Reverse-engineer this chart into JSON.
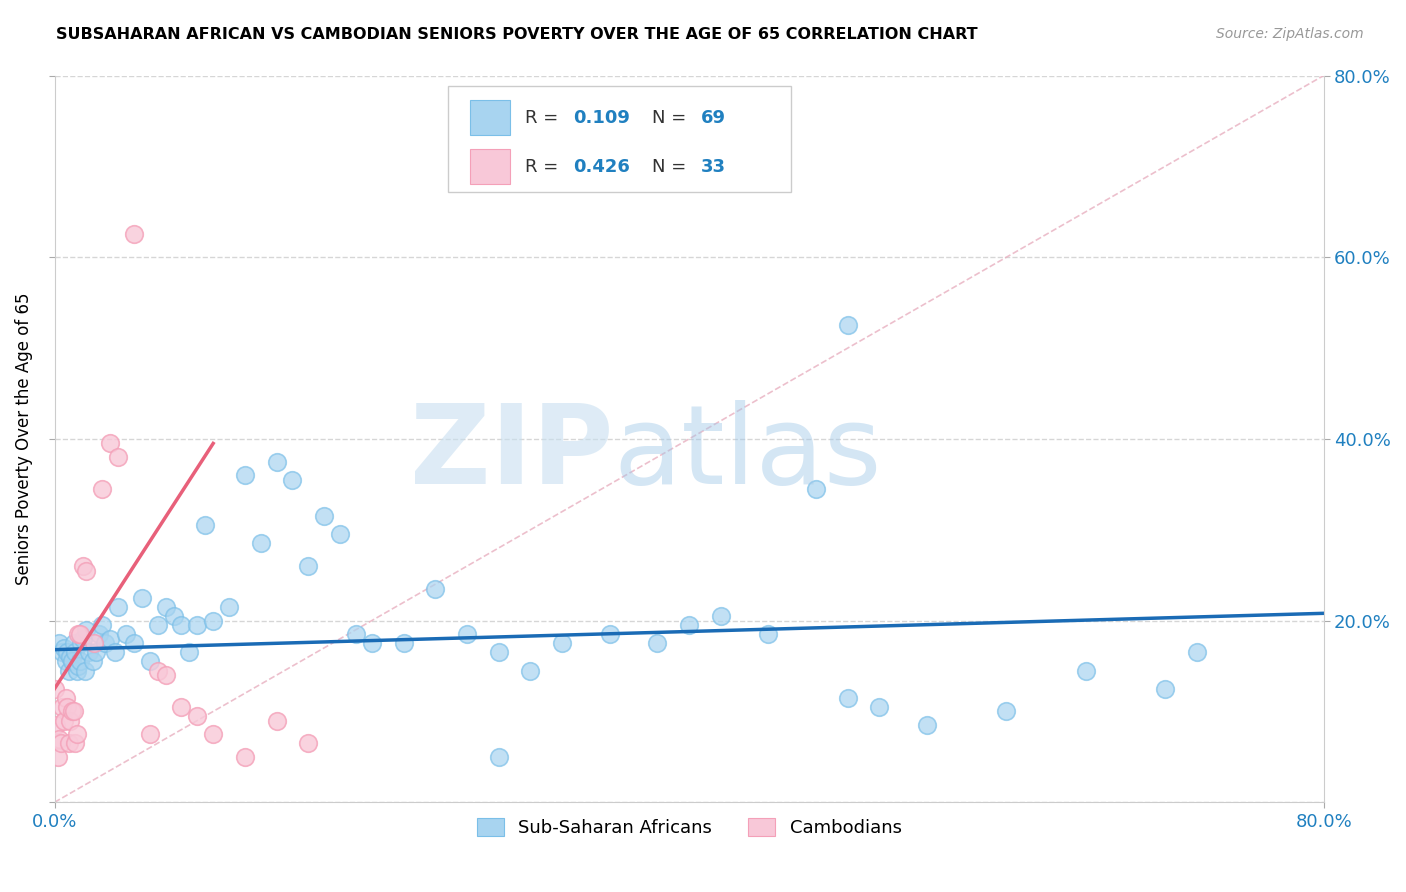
{
  "title": "SUBSAHARAN AFRICAN VS CAMBODIAN SENIORS POVERTY OVER THE AGE OF 65 CORRELATION CHART",
  "source": "Source: ZipAtlas.com",
  "ylabel": "Seniors Poverty Over the Age of 65",
  "xlim": [
    0,
    0.8
  ],
  "ylim": [
    0,
    0.8
  ],
  "xtick_vals": [
    0.0,
    0.8
  ],
  "xtick_labels": [
    "0.0%",
    "80.0%"
  ],
  "ytick_vals": [
    0.0,
    0.2,
    0.4,
    0.6,
    0.8
  ],
  "right_ytick_vals": [
    0.2,
    0.4,
    0.6,
    0.8
  ],
  "right_ytick_labels": [
    "20.0%",
    "40.0%",
    "60.0%",
    "80.0%"
  ],
  "legend_label1": "Sub-Saharan Africans",
  "legend_label2": "Cambodians",
  "color_blue": "#7bbfe8",
  "color_blue_fill": "#a8d4f0",
  "color_pink": "#f4a0b8",
  "color_pink_fill": "#f8c8d8",
  "color_blue_line": "#1a6bb5",
  "color_pink_line": "#e8607a",
  "color_diag": "#e8b0c0",
  "color_grid": "#cccccc",
  "color_legend_blue": "#2080c0",
  "watermark_color1": "#c8dff0",
  "watermark_color2": "#a0c8e8",
  "blue_line_x": [
    0.0,
    0.8
  ],
  "blue_line_y": [
    0.168,
    0.208
  ],
  "pink_line_x": [
    0.0,
    0.1
  ],
  "pink_line_y": [
    0.125,
    0.395
  ],
  "diag_line_x": [
    0.0,
    0.8
  ],
  "diag_line_y": [
    0.0,
    0.8
  ],
  "blue_x": [
    0.003,
    0.005,
    0.006,
    0.007,
    0.008,
    0.009,
    0.01,
    0.011,
    0.012,
    0.013,
    0.014,
    0.015,
    0.016,
    0.017,
    0.018,
    0.019,
    0.02,
    0.022,
    0.024,
    0.026,
    0.028,
    0.03,
    0.032,
    0.035,
    0.038,
    0.04,
    0.045,
    0.05,
    0.055,
    0.06,
    0.065,
    0.07,
    0.075,
    0.08,
    0.085,
    0.09,
    0.095,
    0.1,
    0.11,
    0.12,
    0.13,
    0.14,
    0.15,
    0.16,
    0.17,
    0.18,
    0.19,
    0.2,
    0.22,
    0.24,
    0.26,
    0.28,
    0.3,
    0.32,
    0.35,
    0.38,
    0.4,
    0.42,
    0.45,
    0.48,
    0.5,
    0.52,
    0.55,
    0.6,
    0.65,
    0.7,
    0.72,
    0.5,
    0.28
  ],
  "blue_y": [
    0.175,
    0.165,
    0.17,
    0.155,
    0.165,
    0.145,
    0.16,
    0.155,
    0.175,
    0.165,
    0.145,
    0.15,
    0.155,
    0.175,
    0.18,
    0.145,
    0.19,
    0.165,
    0.155,
    0.165,
    0.185,
    0.195,
    0.175,
    0.18,
    0.165,
    0.215,
    0.185,
    0.175,
    0.225,
    0.155,
    0.195,
    0.215,
    0.205,
    0.195,
    0.165,
    0.195,
    0.305,
    0.2,
    0.215,
    0.36,
    0.285,
    0.375,
    0.355,
    0.26,
    0.315,
    0.295,
    0.185,
    0.175,
    0.175,
    0.235,
    0.185,
    0.165,
    0.145,
    0.175,
    0.185,
    0.175,
    0.195,
    0.205,
    0.185,
    0.345,
    0.525,
    0.105,
    0.085,
    0.1,
    0.145,
    0.125,
    0.165,
    0.115,
    0.05
  ],
  "pink_x": [
    0.0,
    0.001,
    0.002,
    0.003,
    0.004,
    0.005,
    0.006,
    0.007,
    0.008,
    0.009,
    0.01,
    0.011,
    0.012,
    0.013,
    0.014,
    0.015,
    0.016,
    0.018,
    0.02,
    0.025,
    0.03,
    0.035,
    0.04,
    0.05,
    0.06,
    0.065,
    0.07,
    0.08,
    0.09,
    0.1,
    0.12,
    0.14,
    0.16
  ],
  "pink_y": [
    0.125,
    0.085,
    0.05,
    0.07,
    0.065,
    0.105,
    0.09,
    0.115,
    0.105,
    0.065,
    0.09,
    0.1,
    0.1,
    0.065,
    0.075,
    0.185,
    0.185,
    0.26,
    0.255,
    0.175,
    0.345,
    0.395,
    0.38,
    0.625,
    0.075,
    0.145,
    0.14,
    0.105,
    0.095,
    0.075,
    0.05,
    0.09,
    0.065
  ]
}
